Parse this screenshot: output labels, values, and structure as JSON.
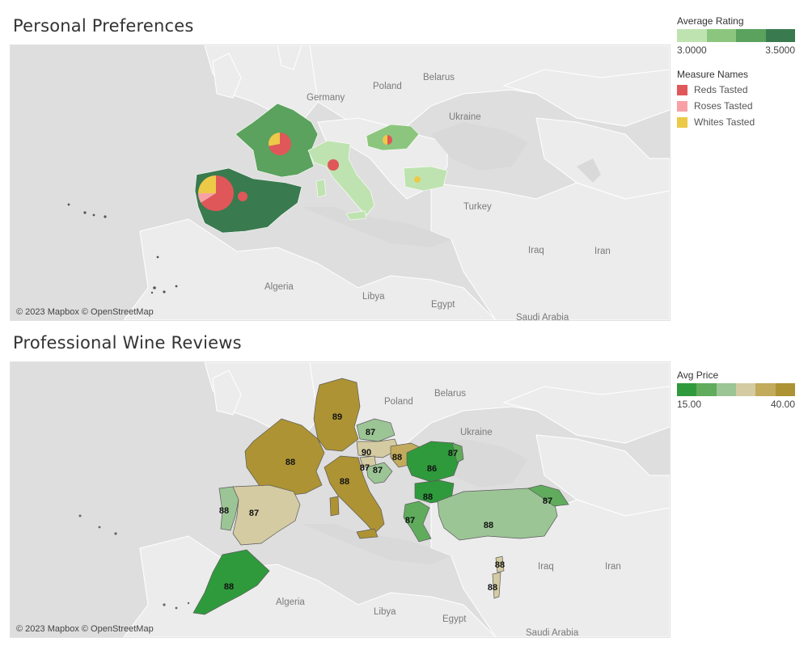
{
  "top": {
    "title": "Personal Preferences",
    "credit": "© 2023 Mapbox © OpenStreetMap",
    "geo_labels": [
      "Germany",
      "Poland",
      "Belarus",
      "Ukraine",
      "Turkey",
      "Iraq",
      "Iran",
      "Algeria",
      "Libya",
      "Egypt",
      "Saudi Arabia"
    ],
    "average_rating_by_country": [
      {
        "country": "Spain",
        "level": 4
      },
      {
        "country": "France",
        "level": 3
      },
      {
        "country": "Italy",
        "level": 1
      },
      {
        "country": "Hungary",
        "level": 2
      },
      {
        "country": "Bulgaria",
        "level": 1
      }
    ],
    "pies": [
      {
        "country": "Spain (Atlantic coast)",
        "slices": [
          {
            "measure": "Reds Tasted",
            "value": 66
          },
          {
            "measure": "Roses Tasted",
            "value": 9
          },
          {
            "measure": "Whites Tasted",
            "value": 25
          }
        ]
      },
      {
        "country": "Spain (inland)",
        "slices": [
          {
            "measure": "Reds Tasted",
            "value": 100
          }
        ]
      },
      {
        "country": "France",
        "slices": [
          {
            "measure": "Reds Tasted",
            "value": 72
          },
          {
            "measure": "Whites Tasted",
            "value": 28
          }
        ]
      },
      {
        "country": "Italy",
        "slices": [
          {
            "measure": "Reds Tasted",
            "value": 100
          }
        ]
      },
      {
        "country": "Hungary",
        "slices": [
          {
            "measure": "Reds Tasted",
            "value": 50
          },
          {
            "measure": "Whites Tasted",
            "value": 50
          }
        ]
      },
      {
        "country": "Bulgaria",
        "slices": [
          {
            "measure": "Whites Tasted",
            "value": 100
          }
        ]
      }
    ]
  },
  "bottom": {
    "title": "Professional Wine Reviews",
    "credit": "© 2023 Mapbox © OpenStreetMap",
    "geo_labels": [
      "Poland",
      "Belarus",
      "Ukraine",
      "Iraq",
      "Iran",
      "Algeria",
      "Libya",
      "Egypt",
      "Saudi Arabia"
    ],
    "ratings": [
      {
        "country": "Germany",
        "label": "89",
        "price_level": 5
      },
      {
        "country": "France",
        "label": "88",
        "price_level": 5
      },
      {
        "country": "Czech Republic",
        "label": "87",
        "price_level": 2
      },
      {
        "country": "Austria",
        "label": "90",
        "price_level": 3
      },
      {
        "country": "Slovenia",
        "label": "87",
        "price_level": 3
      },
      {
        "country": "Croatia",
        "label": "87",
        "price_level": 2
      },
      {
        "country": "Hungary",
        "label": "88",
        "price_level": 4
      },
      {
        "country": "Romania",
        "label": "86",
        "price_level": 0
      },
      {
        "country": "Moldova",
        "label": "87",
        "price_level": 1
      },
      {
        "country": "Bulgaria",
        "label": "88",
        "price_level": 0
      },
      {
        "country": "Italy",
        "label": "88",
        "price_level": 5
      },
      {
        "country": "Portugal",
        "label": "88",
        "price_level": 2
      },
      {
        "country": "Spain",
        "label": "87",
        "price_level": 3
      },
      {
        "country": "Greece",
        "label": "87",
        "price_level": 1
      },
      {
        "country": "Turkey",
        "label": "88",
        "price_level": 2
      },
      {
        "country": "Georgia",
        "label": "87",
        "price_level": 1
      },
      {
        "country": "Lebanon",
        "label": "88",
        "price_level": 3
      },
      {
        "country": "Israel",
        "label": "88",
        "price_level": 3
      },
      {
        "country": "Morocco",
        "label": "88",
        "price_level": 0
      }
    ]
  },
  "legend_rating": {
    "title": "Average Rating",
    "min": "3.0000",
    "max": "3.5000",
    "colors": [
      "#bfe3b0",
      "#8cc67e",
      "#5aa25d",
      "#3a7a4f"
    ]
  },
  "legend_measures": {
    "title": "Measure Names",
    "items": [
      {
        "label": "Reds Tasted",
        "color": "#e05759"
      },
      {
        "label": "Roses Tasted",
        "color": "#f7a1a6"
      },
      {
        "label": "Whites Tasted",
        "color": "#edc948"
      }
    ]
  },
  "legend_price": {
    "title": "Avg Price",
    "min": "15.00",
    "max": "40.00",
    "colors": [
      "#2f9a3c",
      "#60ac5c",
      "#9cc596",
      "#d4cba2",
      "#c2ab5c",
      "#ad9333"
    ]
  },
  "colors": {
    "land": "#ececec",
    "sea": "#d9d9d9",
    "border": "#ffffff"
  }
}
